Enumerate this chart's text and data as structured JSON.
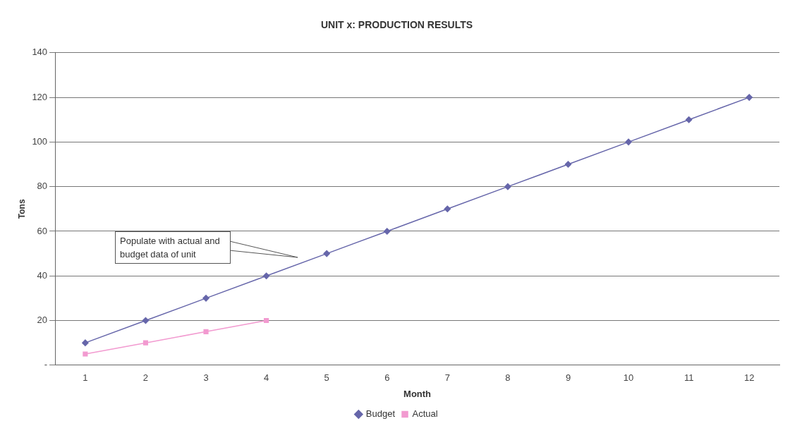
{
  "chart_data": {
    "type": "line",
    "title": "UNIT x: PRODUCTION RESULTS",
    "xlabel": "Month",
    "ylabel": "Tons",
    "categories": [
      "1",
      "2",
      "3",
      "4",
      "5",
      "6",
      "7",
      "8",
      "9",
      "10",
      "11",
      "12"
    ],
    "series": [
      {
        "name": "Budget",
        "color": "#6666aa",
        "marker": "diamond",
        "values": [
          10,
          20,
          30,
          40,
          50,
          60,
          70,
          80,
          90,
          100,
          110,
          120
        ]
      },
      {
        "name": "Actual",
        "color": "#f29ad0",
        "marker": "square",
        "values": [
          5,
          10,
          15,
          20,
          null,
          null,
          null,
          null,
          null,
          null,
          null,
          null
        ]
      }
    ],
    "ylim": [
      0,
      140
    ],
    "yticks": [
      {
        "value": 0,
        "label": "-"
      },
      20,
      40,
      60,
      80,
      100,
      120,
      140
    ],
    "grid": "y",
    "legend": "bottom",
    "line_style": "solid",
    "annotations": [
      "Populate with actual and budget data of unit"
    ]
  }
}
